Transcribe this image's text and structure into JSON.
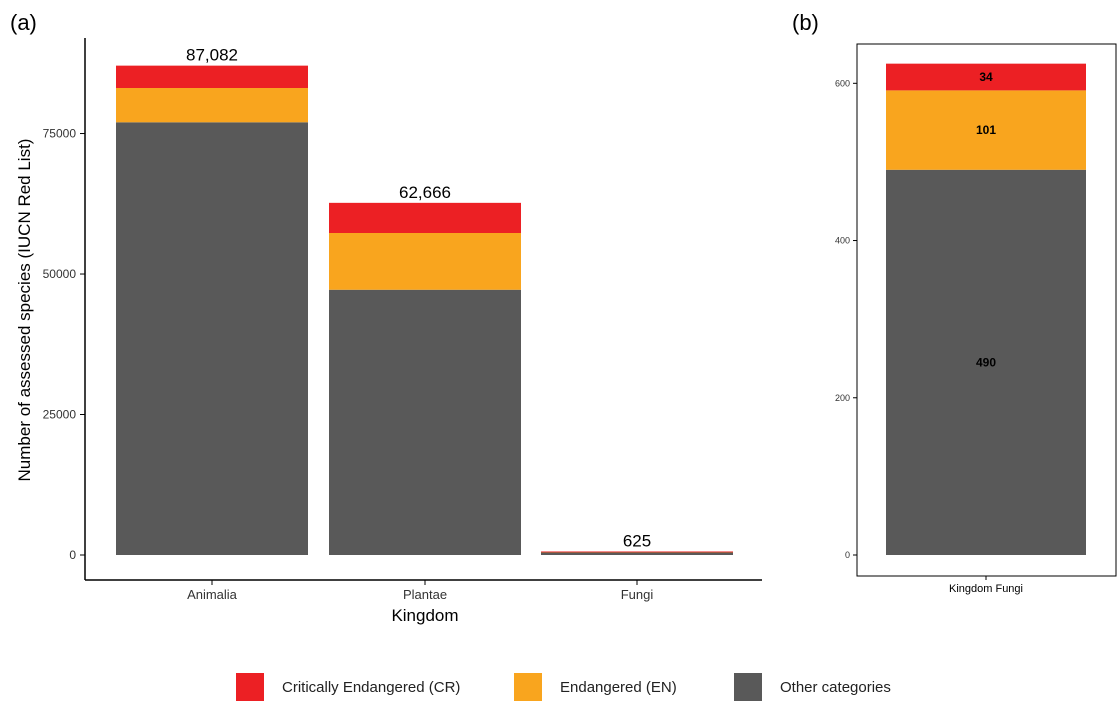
{
  "chart_data": [
    {
      "panel_label": "(a)",
      "type": "bar",
      "stacked": true,
      "categories": [
        "Animalia",
        "Plantae",
        "Fungi"
      ],
      "totals": [
        "87,082",
        "62,666",
        "625"
      ],
      "series": [
        {
          "name": "Other categories",
          "color": "#595959",
          "values": [
            77000,
            47200,
            490
          ]
        },
        {
          "name": "Endangered (EN)",
          "color": "#f9a51e",
          "values": [
            6100,
            10100,
            101
          ]
        },
        {
          "name": "Critically Endangered (CR)",
          "color": "#ec2024",
          "values": [
            3982,
            5366,
            34
          ]
        }
      ],
      "xlabel": "Kingdom",
      "ylabel": "Number of assessed species (IUCN Red List)",
      "ylim": [
        0,
        92000
      ],
      "yticks": [
        "0",
        "25000",
        "50000",
        "75000"
      ],
      "grid": false
    },
    {
      "panel_label": "(b)",
      "type": "bar",
      "stacked": true,
      "categories": [
        "Kingdom Fungi"
      ],
      "series": [
        {
          "name": "Other categories",
          "color": "#595959",
          "values": [
            490
          ],
          "labels": [
            "490"
          ]
        },
        {
          "name": "Endangered (EN)",
          "color": "#f9a51e",
          "values": [
            101
          ],
          "labels": [
            "101"
          ]
        },
        {
          "name": "Critically Endangered (CR)",
          "color": "#ec2024",
          "values": [
            34
          ],
          "labels": [
            "34"
          ]
        }
      ],
      "ylim": [
        0,
        650
      ],
      "yticks": [
        "0",
        "200",
        "400",
        "600"
      ],
      "grid": false
    }
  ],
  "legend": [
    {
      "label": "Critically Endangered (CR)",
      "color": "#ec2024"
    },
    {
      "label": "Endangered (EN)",
      "color": "#f9a51e"
    },
    {
      "label": "Other categories",
      "color": "#595959"
    }
  ]
}
